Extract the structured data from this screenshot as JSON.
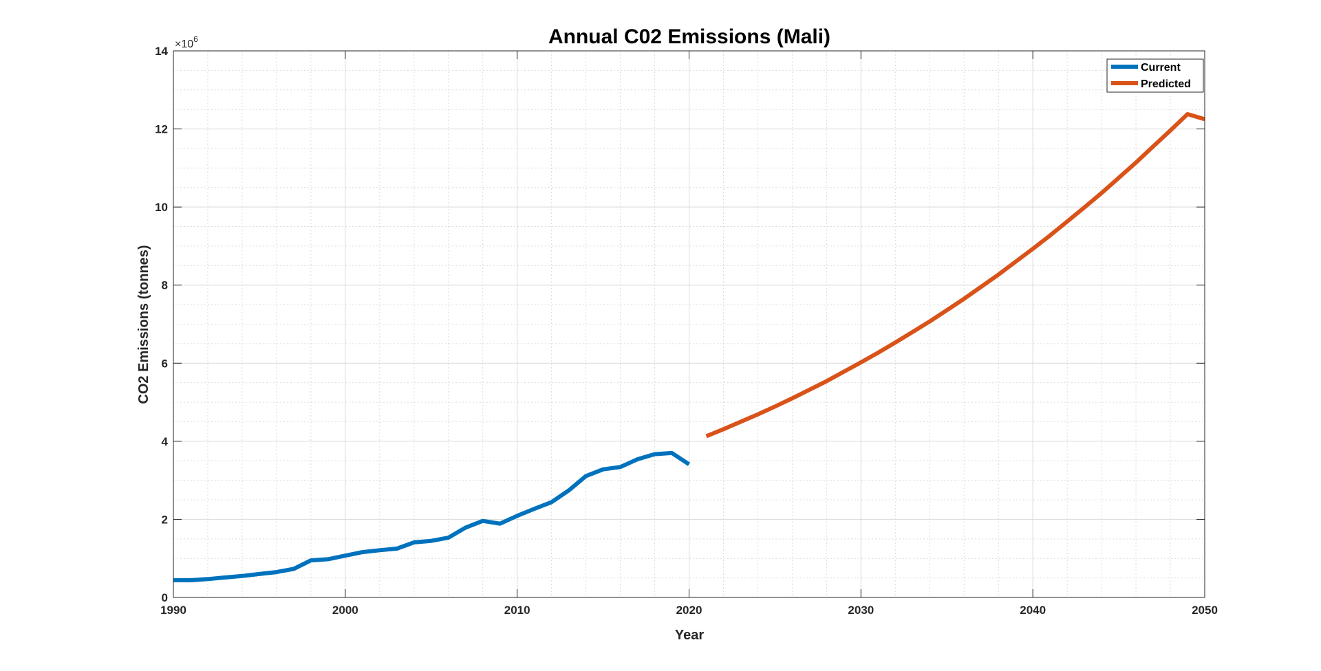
{
  "chart_data": {
    "type": "line",
    "title": "Annual C02 Emissions (Mali)",
    "xlabel": "Year",
    "ylabel": "CO2 Emissions (tonnes)",
    "y_multiplier_base": "×10",
    "y_multiplier_exponent": "6",
    "xlim": [
      1990,
      2050
    ],
    "ylim": [
      0,
      14
    ],
    "x_ticks": [
      1990,
      2000,
      2010,
      2020,
      2030,
      2040,
      2050
    ],
    "y_ticks": [
      0,
      2,
      4,
      6,
      8,
      10,
      12,
      14
    ],
    "grid": true,
    "minor_grid": true,
    "legend_position": "top-right",
    "series": [
      {
        "name": "Current",
        "color": "#0072BD",
        "x": [
          1990,
          1991,
          1992,
          1993,
          1994,
          1995,
          1996,
          1997,
          1998,
          1999,
          2000,
          2001,
          2002,
          2003,
          2004,
          2005,
          2006,
          2007,
          2008,
          2009,
          2010,
          2011,
          2012,
          2013,
          2014,
          2015,
          2016,
          2017,
          2018,
          2019,
          2020
        ],
        "y": [
          0.44,
          0.44,
          0.47,
          0.51,
          0.55,
          0.6,
          0.65,
          0.73,
          0.95,
          0.98,
          1.07,
          1.16,
          1.21,
          1.25,
          1.41,
          1.45,
          1.53,
          1.79,
          1.96,
          1.89,
          2.09,
          2.27,
          2.44,
          2.74,
          3.11,
          3.28,
          3.34,
          3.54,
          3.67,
          3.7,
          3.41
        ]
      },
      {
        "name": "Predicted",
        "color": "#D95319",
        "x": [
          2021,
          2022,
          2023,
          2024,
          2025,
          2026,
          2027,
          2028,
          2029,
          2030,
          2031,
          2032,
          2033,
          2034,
          2035,
          2036,
          2037,
          2038,
          2039,
          2040,
          2041,
          2042,
          2043,
          2044,
          2045,
          2046,
          2047,
          2048,
          2049,
          2050
        ],
        "y": [
          4.13,
          4.31,
          4.5,
          4.69,
          4.89,
          5.1,
          5.32,
          5.54,
          5.78,
          6.02,
          6.27,
          6.53,
          6.8,
          7.07,
          7.36,
          7.65,
          7.96,
          8.27,
          8.6,
          8.93,
          9.27,
          9.63,
          9.99,
          10.36,
          10.75,
          11.14,
          11.55,
          11.96,
          12.38,
          12.25
        ]
      }
    ]
  }
}
